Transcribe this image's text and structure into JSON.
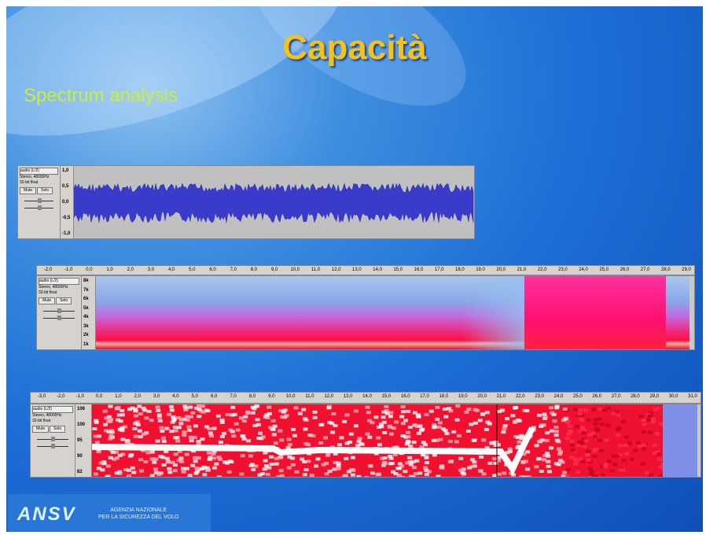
{
  "header": {
    "title": "Capacità",
    "subtitle": "Spectrum analysis"
  },
  "panels": [
    {
      "track": {
        "name": "audio (L/2)",
        "info": [
          "Stereo, 48000Hz",
          "32-bit float"
        ],
        "buttons": [
          "Mute",
          "Solo"
        ]
      },
      "scale": [
        "1,0",
        "0,5",
        "0,0",
        "-0,5",
        "-1,0"
      ]
    },
    {
      "track": {
        "name": "audio (L/2)",
        "info": [
          "Stereo, 48000Hz",
          "32-bit float"
        ],
        "buttons": [
          "Mute",
          "Solo"
        ]
      },
      "timeline": [
        "-2,0",
        "-1,0",
        "0,0",
        "1,0",
        "2,0",
        "3,0",
        "4,0",
        "5,0",
        "6,0",
        "7,0",
        "8,0",
        "9,0",
        "10,0",
        "11,0",
        "12,0",
        "13,0",
        "14,0",
        "15,0",
        "16,0",
        "17,0",
        "18,0",
        "19,0",
        "20,0",
        "21,0",
        "22,0",
        "23,0",
        "24,0",
        "25,0",
        "26,0",
        "27,0",
        "28,0",
        "29,0"
      ],
      "scale": [
        "8k",
        "7k",
        "6k",
        "5k",
        "4k",
        "3k",
        "2k",
        "1k"
      ]
    },
    {
      "track": {
        "name": "audio (L/2)",
        "info": [
          "Stereo, 48000Hz",
          "32-bit float"
        ],
        "buttons": [
          "Mute",
          "Solo"
        ]
      },
      "timeline": [
        "-3,0",
        "-2,0",
        "-1,0",
        "0,0",
        "1,0",
        "2,0",
        "3,0",
        "4,0",
        "5,0",
        "6,0",
        "7,0",
        "8,0",
        "9,0",
        "10,0",
        "11,0",
        "12,0",
        "13,0",
        "14,0",
        "15,0",
        "16,0",
        "17,0",
        "18,0",
        "19,0",
        "20,0",
        "21,0",
        "22,0",
        "23,0",
        "24,0",
        "25,0",
        "26,0",
        "27,0",
        "28,0",
        "29,0",
        "30,0",
        "31,0"
      ],
      "scale": [
        "106",
        "100",
        "95",
        "90",
        "82"
      ]
    }
  ],
  "footer": {
    "logo": "ANSV",
    "agency": [
      "AGENZIA NAZIONALE",
      "PER LA SICUREZZA DEL VOLO"
    ]
  }
}
